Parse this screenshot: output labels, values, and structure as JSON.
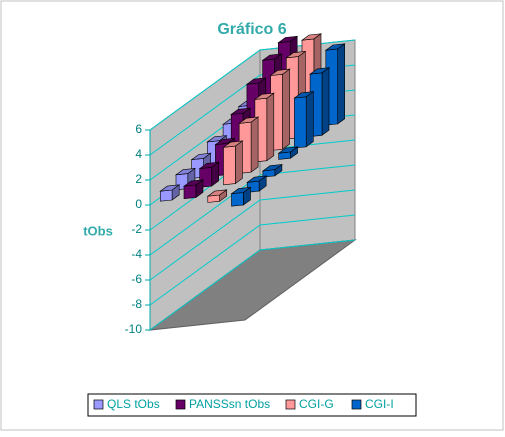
{
  "chart_data": {
    "type": "bar3d",
    "title": "Gráfico 6",
    "y_label": "tObs",
    "categories": [
      null,
      null,
      null,
      null,
      null,
      null,
      null
    ],
    "series": [
      {
        "name": "QLS tObs",
        "color": "#9999ff",
        "values": [
          0.8,
          1.2,
          1.5,
          2,
          2.5,
          3,
          3
        ]
      },
      {
        "name": "PANSSsn tObs",
        "color": "#660066",
        "values": [
          1,
          1.5,
          2.5,
          4,
          5.5,
          6.5,
          7
        ]
      },
      {
        "name": "CGI-G",
        "color": "#ff9999",
        "values": [
          -0.5,
          3,
          4,
          5,
          6,
          6.5,
          7
        ]
      },
      {
        "name": "CGI-I",
        "color": "#0066cc",
        "values": [
          -1,
          -0.8,
          -0.5,
          0.5,
          4,
          5,
          6
        ]
      }
    ],
    "ylim": [
      -10,
      6
    ],
    "yticks": [
      6,
      4,
      2,
      0,
      -2,
      -4,
      -6,
      -8,
      -10
    ],
    "grid": true
  }
}
